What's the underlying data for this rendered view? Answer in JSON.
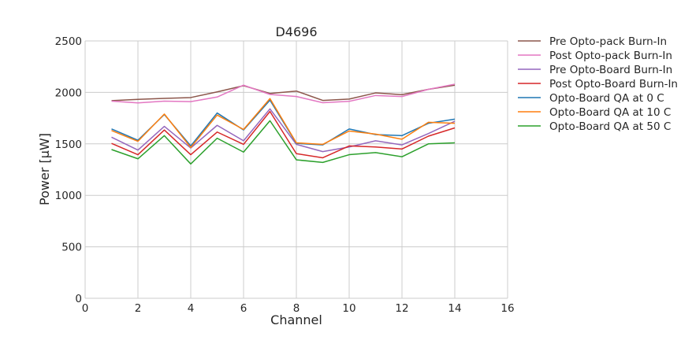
{
  "chart_data": {
    "type": "line",
    "title": "D4696",
    "xlabel": "Channel",
    "ylabel": "Power [μW]",
    "xlim": [
      0,
      16
    ],
    "ylim": [
      0,
      2500
    ],
    "xticks": [
      0,
      2,
      4,
      6,
      8,
      10,
      12,
      14,
      16
    ],
    "yticks": [
      0,
      500,
      1000,
      1500,
      2000,
      2500
    ],
    "grid": true,
    "legend_position": "outside-right-top",
    "x": [
      1,
      2,
      3,
      4,
      5,
      6,
      7,
      8,
      9,
      10,
      11,
      12,
      13,
      14
    ],
    "series": [
      {
        "name": "Pre Opto-pack Burn-In",
        "color": "#8c564b",
        "values": [
          1920,
          1932,
          1942,
          1950,
          2005,
          2065,
          1990,
          2013,
          1922,
          1935,
          1995,
          1978,
          2030,
          2070
        ]
      },
      {
        "name": "Post Opto-pack Burn-In",
        "color": "#e377c2",
        "values": [
          1915,
          1898,
          1915,
          1910,
          1955,
          2070,
          1980,
          1960,
          1900,
          1913,
          1970,
          1960,
          2030,
          2080
        ]
      },
      {
        "name": "Pre Opto-Board Burn-In",
        "color": "#9467bd",
        "values": [
          1565,
          1440,
          1670,
          1460,
          1680,
          1530,
          1840,
          1495,
          1425,
          1470,
          1530,
          1490,
          1600,
          1720
        ]
      },
      {
        "name": "Post Opto-Board Burn-In",
        "color": "#d62728",
        "values": [
          1505,
          1395,
          1635,
          1395,
          1615,
          1495,
          1815,
          1405,
          1365,
          1480,
          1470,
          1450,
          1575,
          1655
        ]
      },
      {
        "name": "Opto-Board QA at 0 C",
        "color": "#1f77b4",
        "values": [
          1645,
          1535,
          1785,
          1480,
          1800,
          1635,
          1925,
          1505,
          1490,
          1645,
          1590,
          1580,
          1700,
          1740
        ]
      },
      {
        "name": "Opto-Board QA at 10 C",
        "color": "#ff7f0e",
        "values": [
          1630,
          1525,
          1790,
          1465,
          1780,
          1640,
          1940,
          1510,
          1495,
          1625,
          1595,
          1545,
          1710,
          1700
        ]
      },
      {
        "name": "Opto-Board QA at 50 C",
        "color": "#2ca02c",
        "values": [
          1445,
          1355,
          1580,
          1305,
          1555,
          1420,
          1725,
          1345,
          1320,
          1395,
          1415,
          1375,
          1500,
          1510
        ]
      }
    ]
  }
}
